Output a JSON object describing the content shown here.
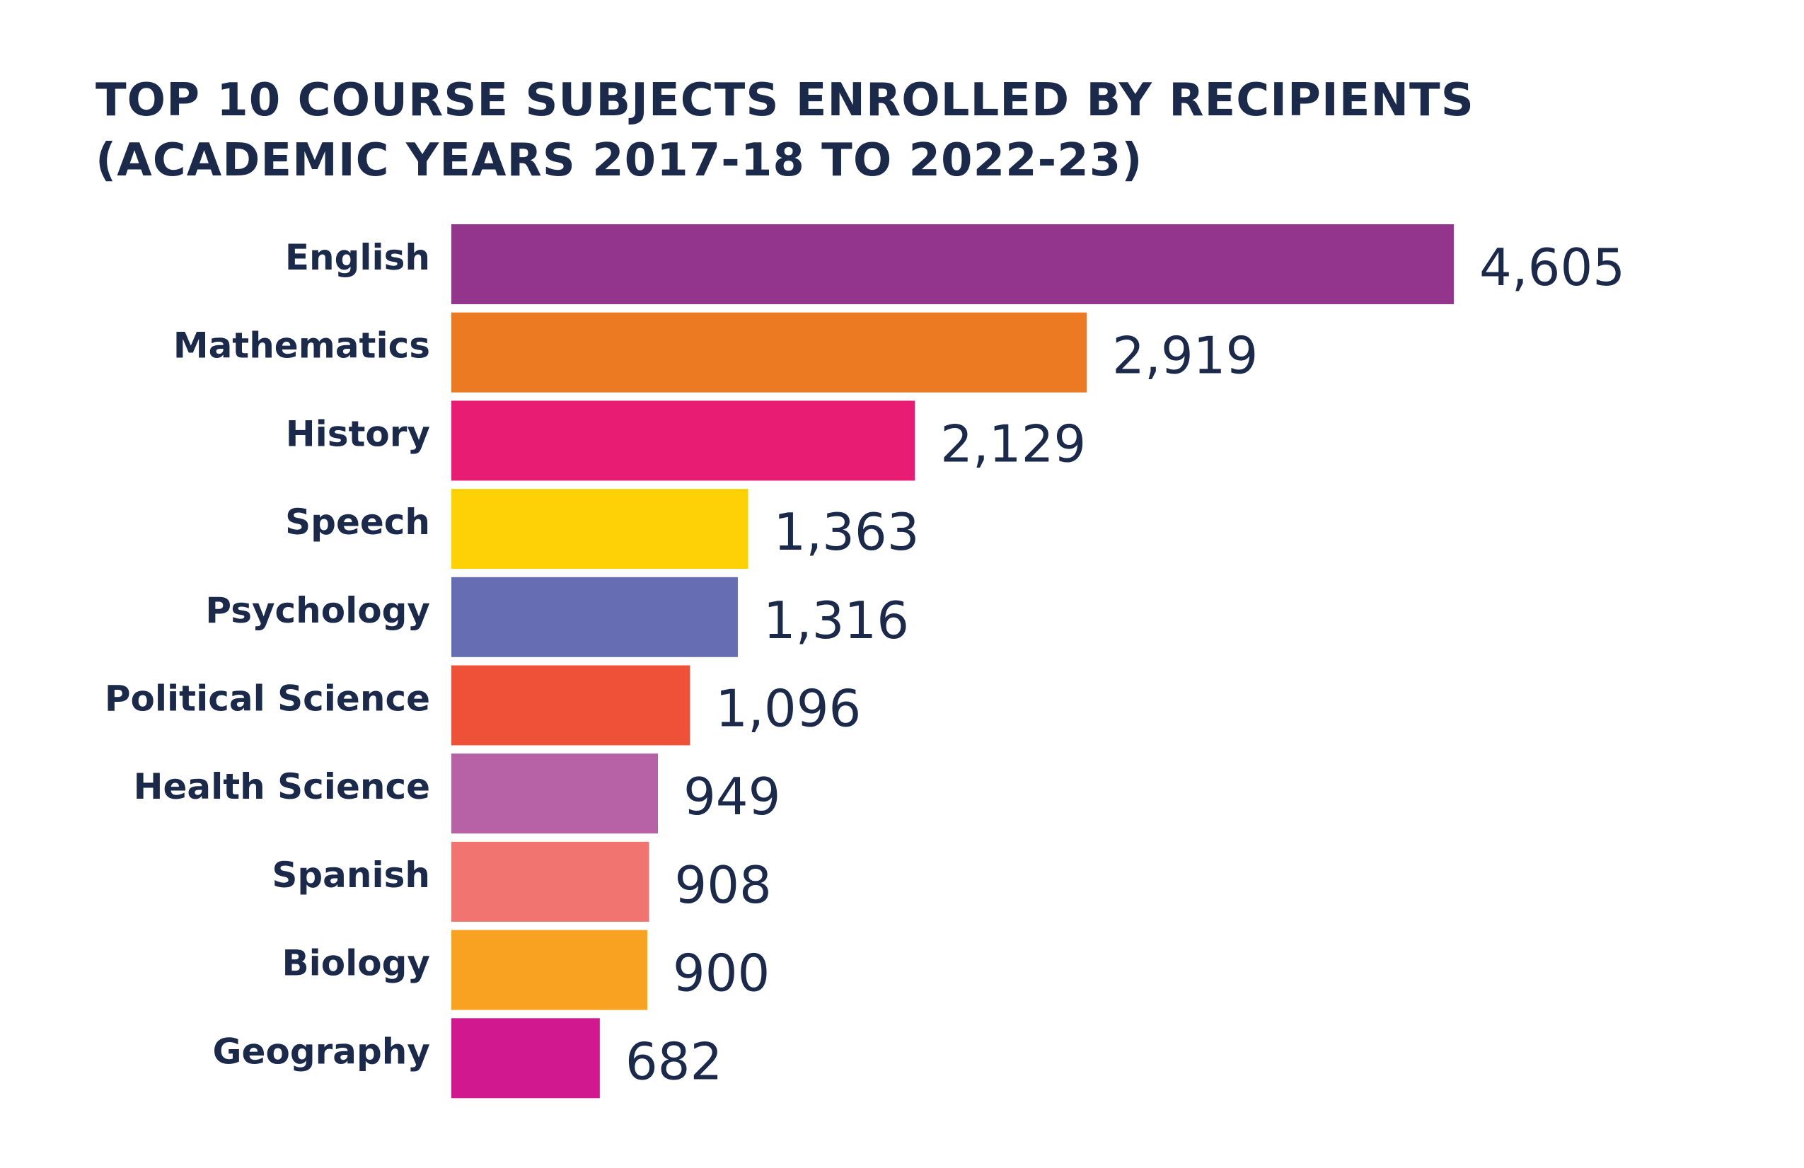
{
  "chart_data": {
    "type": "bar",
    "orientation": "horizontal",
    "title": [
      "TOP 10 COURSE SUBJECTS ENROLLED BY RECIPIENTS",
      "(ACADEMIC YEARS 2017-18 TO 2022-23)"
    ],
    "categories": [
      "English",
      "Mathematics",
      "History",
      "Speech",
      "Psychology",
      "Political Science",
      "Health Science",
      "Spanish",
      "Biology",
      "Geography"
    ],
    "values": [
      4605,
      2919,
      2129,
      1363,
      1316,
      1096,
      949,
      908,
      900,
      682
    ],
    "value_labels": [
      "4,605",
      "2,919",
      "2,129",
      "1,363",
      "1,316",
      "1,096",
      "949",
      "908",
      "900",
      "682"
    ],
    "colors": [
      "#93358c",
      "#ec7a23",
      "#e91c74",
      "#fdd106",
      "#676db3",
      "#ef5138",
      "#b761a6",
      "#f27470",
      "#f9a120",
      "#d1188e"
    ]
  }
}
